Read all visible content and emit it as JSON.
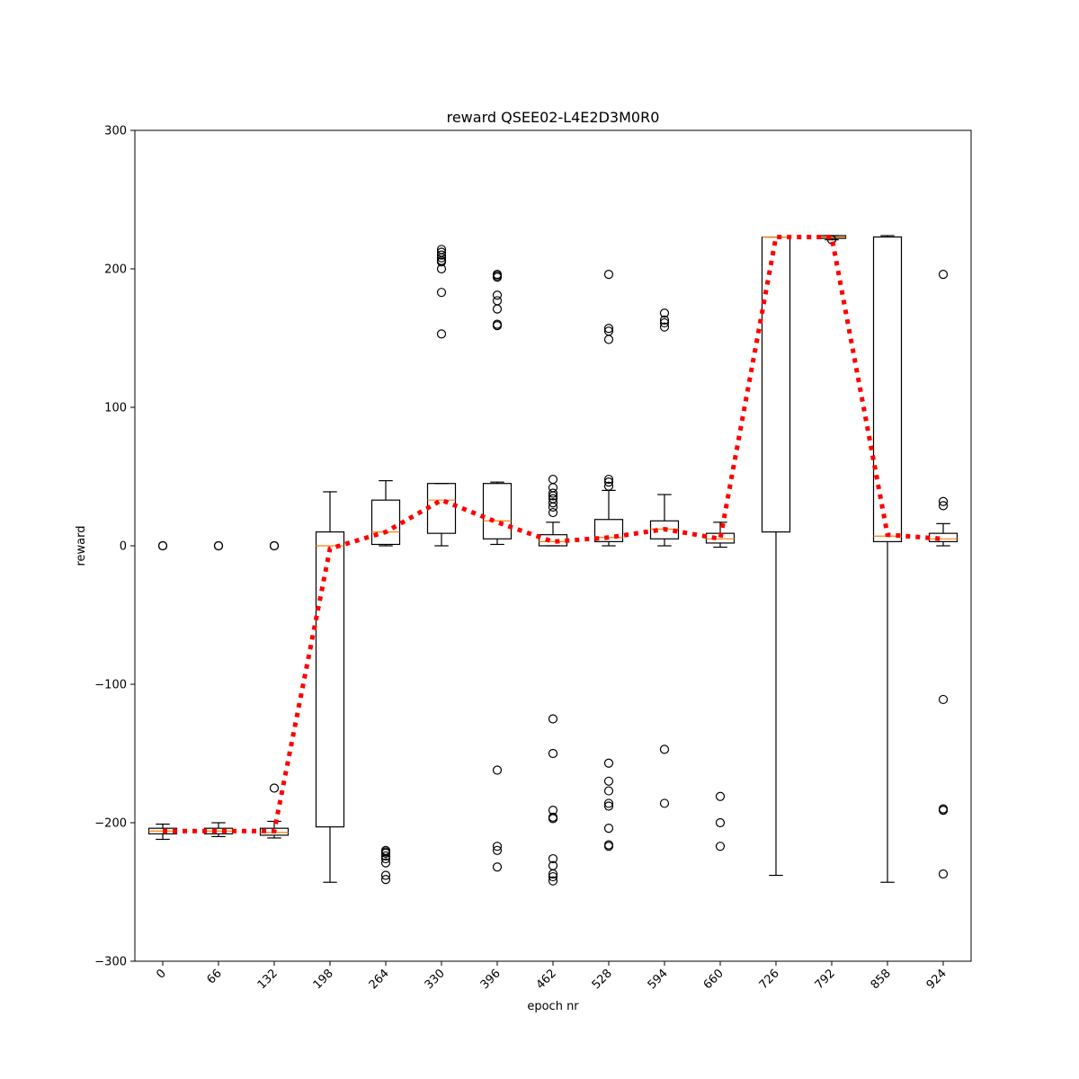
{
  "chart_data": {
    "type": "box",
    "title": "reward QSEE02-L4E2D3M0R0",
    "xlabel": "epoch nr",
    "ylabel": "reward",
    "ylim": [
      -300,
      300
    ],
    "yticks": [
      -300,
      -200,
      -100,
      0,
      100,
      200,
      300
    ],
    "ytick_labels": [
      "−300",
      "−200",
      "−100",
      "0",
      "100",
      "200",
      "300"
    ],
    "categories": [
      "0",
      "66",
      "132",
      "198",
      "264",
      "330",
      "396",
      "462",
      "528",
      "594",
      "660",
      "726",
      "792",
      "858",
      "924"
    ],
    "boxes": [
      {
        "whisker_low": -212,
        "q1": -208,
        "median": -206,
        "q3": -204,
        "whisker_high": -201,
        "outliers": [
          0,
          0
        ]
      },
      {
        "whisker_low": -210,
        "q1": -208,
        "median": -206,
        "q3": -204,
        "whisker_high": -200,
        "outliers": [
          0,
          0
        ]
      },
      {
        "whisker_low": -211,
        "q1": -209,
        "median": -207,
        "q3": -204,
        "whisker_high": -199,
        "outliers": [
          0,
          0,
          -175
        ]
      },
      {
        "whisker_low": -243,
        "q1": -203,
        "median": 0,
        "q3": 10,
        "whisker_high": 39,
        "outliers": []
      },
      {
        "whisker_low": 0,
        "q1": 1,
        "median": 10,
        "q3": 33,
        "whisker_high": 47,
        "outliers": [
          -220,
          -221,
          -222,
          -224,
          -226,
          -229,
          -238,
          -241
        ]
      },
      {
        "whisker_low": 0,
        "q1": 9,
        "median": 33,
        "q3": 45,
        "whisker_high": 45,
        "outliers": [
          214,
          212,
          210,
          208,
          206,
          205,
          200,
          183,
          153
        ]
      },
      {
        "whisker_low": 1,
        "q1": 5,
        "median": 18,
        "q3": 45,
        "whisker_high": 46,
        "outliers": [
          196,
          195,
          194,
          181,
          177,
          171,
          160,
          159,
          -162,
          -217,
          -220,
          -232
        ]
      },
      {
        "whisker_low": 0,
        "q1": 0,
        "median": 3,
        "q3": 8,
        "whisker_high": 17,
        "outliers": [
          48,
          42,
          38,
          36,
          34,
          31,
          28,
          24,
          -125,
          -150,
          -191,
          -196,
          -197,
          -226,
          -231,
          -237,
          -239,
          -242
        ]
      },
      {
        "whisker_low": 0,
        "q1": 3,
        "median": 6,
        "q3": 19,
        "whisker_high": 40,
        "outliers": [
          196,
          157,
          155,
          149,
          48,
          46,
          43,
          -157,
          -170,
          -177,
          -186,
          -188,
          -204,
          -216,
          -217
        ]
      },
      {
        "whisker_low": 0,
        "q1": 5,
        "median": 12,
        "q3": 18,
        "whisker_high": 37,
        "outliers": [
          168,
          163,
          161,
          158,
          -147,
          -186
        ]
      },
      {
        "whisker_low": -1,
        "q1": 2,
        "median": 5,
        "q3": 9,
        "whisker_high": 17,
        "outliers": [
          -181,
          -200,
          -217
        ]
      },
      {
        "whisker_low": -238,
        "q1": 10,
        "median": 223,
        "q3": 223,
        "whisker_high": 223,
        "outliers": []
      },
      {
        "whisker_low": 221,
        "q1": 222,
        "median": 223,
        "q3": 224,
        "whisker_high": 224,
        "outliers": [
          221
        ]
      },
      {
        "whisker_low": -243,
        "q1": 3,
        "median": 7,
        "q3": 223,
        "whisker_high": 224,
        "outliers": []
      },
      {
        "whisker_low": 0,
        "q1": 3,
        "median": 5,
        "q3": 9,
        "whisker_high": 16,
        "outliers": [
          196,
          32,
          29,
          -111,
          -190,
          -191,
          -237
        ]
      }
    ],
    "mean_line": {
      "style": "dotted",
      "color": "#ff0000",
      "values": [
        -206,
        -206,
        -206,
        -2,
        10,
        33,
        17,
        3,
        6,
        12,
        5,
        223,
        223,
        8,
        5
      ]
    },
    "colors": {
      "box": "#000000",
      "median": "#ff7f0e",
      "mean_line": "#ff0000",
      "outlier": "#000000"
    },
    "grid": false,
    "legend": "none"
  }
}
